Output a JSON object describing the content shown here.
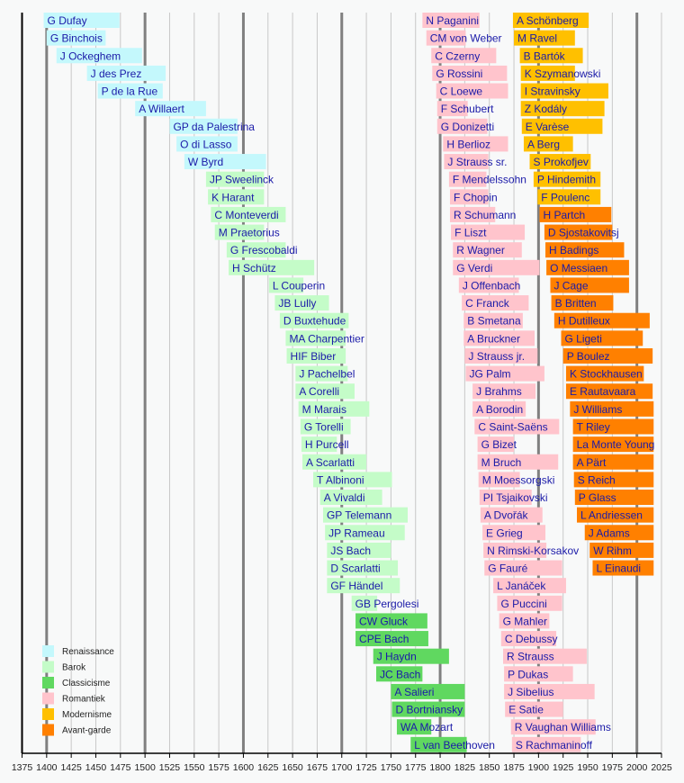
{
  "chart_data": {
    "type": "timeline",
    "title": "",
    "xlabel": "",
    "xlim": [
      1375,
      2025
    ],
    "x_ticks": [
      1375,
      1400,
      1425,
      1450,
      1475,
      1500,
      1525,
      1550,
      1575,
      1600,
      1625,
      1650,
      1675,
      1700,
      1725,
      1750,
      1775,
      1800,
      1825,
      1850,
      1875,
      1900,
      1925,
      1950,
      1975,
      2000,
      2025
    ],
    "grid": true,
    "legend_position": "bottom-left",
    "periods": [
      {
        "key": "ren",
        "label": "Renaissance",
        "color": "#c4f8fc"
      },
      {
        "key": "bar",
        "label": "Barok",
        "color": "#c4fcc8"
      },
      {
        "key": "cla",
        "label": "Classicisme",
        "color": "#60d860"
      },
      {
        "key": "rom",
        "label": "Romantiek",
        "color": "#ffc4cc"
      },
      {
        "key": "mod",
        "label": "Modernisme",
        "color": "#ffc000"
      },
      {
        "key": "ava",
        "label": "Avant-garde",
        "color": "#ff8000"
      }
    ],
    "rows": [
      [
        [
          "G Dufay",
          1397,
          1474,
          "ren"
        ],
        [
          "N Paganini",
          1782,
          1840,
          "rom"
        ],
        [
          "A Schönberg",
          1874,
          1951,
          "mod"
        ]
      ],
      [
        [
          "G Binchois",
          1400,
          1460,
          "ren"
        ],
        [
          "CM von Weber",
          1786,
          1826,
          "rom"
        ],
        [
          "M Ravel",
          1875,
          1937,
          "mod"
        ]
      ],
      [
        [
          "J Ockeghem",
          1410,
          1497,
          "ren"
        ],
        [
          "C Czerny",
          1791,
          1857,
          "rom"
        ],
        [
          "B Bartók",
          1881,
          1945,
          "mod"
        ]
      ],
      [
        [
          "J des Prez",
          1441,
          1521,
          "ren"
        ],
        [
          "G Rossini",
          1792,
          1868,
          "rom"
        ],
        [
          "K Szymanowski",
          1882,
          1937,
          "mod"
        ]
      ],
      [
        [
          "P de la Rue",
          1452,
          1518,
          "ren"
        ],
        [
          "C Loewe",
          1796,
          1869,
          "rom"
        ],
        [
          "I Stravinsky",
          1882,
          1971,
          "mod"
        ]
      ],
      [
        [
          "A Willaert",
          1490,
          1562,
          "ren"
        ],
        [
          "F Schubert",
          1797,
          1828,
          "rom"
        ],
        [
          "Z Kodály",
          1882,
          1967,
          "mod"
        ]
      ],
      [
        [
          "GP da Palestrina",
          1525,
          1594,
          "ren"
        ],
        [
          "G Donizetti",
          1797,
          1848,
          "rom"
        ],
        [
          "E Varèse",
          1883,
          1965,
          "mod"
        ]
      ],
      [
        [
          "O di Lasso",
          1532,
          1594,
          "ren"
        ],
        [
          "H Berlioz",
          1803,
          1869,
          "rom"
        ],
        [
          "A Berg",
          1885,
          1935,
          "mod"
        ]
      ],
      [
        [
          "W Byrd",
          1540,
          1623,
          "ren"
        ],
        [
          "J Strauss sr.",
          1804,
          1849,
          "rom"
        ],
        [
          "S Prokofjev",
          1891,
          1953,
          "mod"
        ]
      ],
      [
        [
          "JP Sweelinck",
          1562,
          1621,
          "bar"
        ],
        [
          "F Mendelssohn",
          1809,
          1847,
          "rom"
        ],
        [
          "P Hindemith",
          1895,
          1963,
          "mod"
        ]
      ],
      [
        [
          "K Harant",
          1564,
          1621,
          "bar"
        ],
        [
          "F Chopin",
          1810,
          1849,
          "rom"
        ],
        [
          "F Poulenc",
          1899,
          1963,
          "mod"
        ]
      ],
      [
        [
          "C Monteverdi",
          1567,
          1643,
          "bar"
        ],
        [
          "R Schumann",
          1810,
          1856,
          "rom"
        ],
        [
          "H Partch",
          1901,
          1974,
          "ava"
        ]
      ],
      [
        [
          "M Praetorius",
          1571,
          1621,
          "bar"
        ],
        [
          "F Liszt",
          1811,
          1886,
          "rom"
        ],
        [
          "D Sjostakovitsj",
          1906,
          1975,
          "ava"
        ]
      ],
      [
        [
          "G Frescobaldi",
          1583,
          1643,
          "bar"
        ],
        [
          "R Wagner",
          1813,
          1883,
          "rom"
        ],
        [
          "H Badings",
          1907,
          1987,
          "ava"
        ]
      ],
      [
        [
          "H Schütz",
          1585,
          1672,
          "bar"
        ],
        [
          "G Verdi",
          1813,
          1901,
          "rom"
        ],
        [
          "O Messiaen",
          1908,
          1992,
          "ava"
        ]
      ],
      [
        [
          "L Couperin",
          1626,
          1661,
          "bar"
        ],
        [
          "J Offenbach",
          1819,
          1880,
          "rom"
        ],
        [
          "J Cage",
          1912,
          1992,
          "ava"
        ]
      ],
      [
        [
          "JB Lully",
          1632,
          1687,
          "bar"
        ],
        [
          "C Franck",
          1822,
          1890,
          "rom"
        ],
        [
          "B Britten",
          1913,
          1976,
          "ava"
        ]
      ],
      [
        [
          "D Buxtehude",
          1637,
          1707,
          "bar"
        ],
        [
          "B Smetana",
          1824,
          1884,
          "rom"
        ],
        [
          "H Dutilleux",
          1916,
          2013,
          "ava"
        ]
      ],
      [
        [
          "MA Charpentier",
          1643,
          1704,
          "bar"
        ],
        [
          "A Bruckner",
          1824,
          1896,
          "rom"
        ],
        [
          "G Ligeti",
          1923,
          2006,
          "ava"
        ]
      ],
      [
        [
          "HIF Biber",
          1644,
          1704,
          "bar"
        ],
        [
          "J Strauss jr.",
          1825,
          1899,
          "rom"
        ],
        [
          "P Boulez",
          1925,
          2016,
          "ava"
        ]
      ],
      [
        [
          "J Pachelbel",
          1653,
          1706,
          "bar"
        ],
        [
          "JG Palm",
          1826,
          1906,
          "rom"
        ],
        [
          "K Stockhausen",
          1928,
          2007,
          "ava"
        ]
      ],
      [
        [
          "A Corelli",
          1653,
          1713,
          "bar"
        ],
        [
          "J Brahms",
          1833,
          1897,
          "rom"
        ],
        [
          "E Rautavaara",
          1928,
          2016,
          "ava"
        ]
      ],
      [
        [
          "M Marais",
          1656,
          1728,
          "bar"
        ],
        [
          "A Borodin",
          1833,
          1887,
          "rom"
        ],
        [
          "J Williams",
          1932,
          2017,
          "ava"
        ]
      ],
      [
        [
          "G Torelli",
          1658,
          1709,
          "bar"
        ],
        [
          "C Saint-Saëns",
          1835,
          1921,
          "rom"
        ],
        [
          "T Riley",
          1935,
          2017,
          "ava"
        ]
      ],
      [
        [
          "H Purcell",
          1659,
          1695,
          "bar"
        ],
        [
          "G Bizet",
          1838,
          1875,
          "rom"
        ],
        [
          "La Monte Young",
          1935,
          2017,
          "ava"
        ]
      ],
      [
        [
          "A Scarlatti",
          1660,
          1725,
          "bar"
        ],
        [
          "M Bruch",
          1838,
          1920,
          "rom"
        ],
        [
          "A Pärt",
          1935,
          2017,
          "ava"
        ]
      ],
      [
        [
          "T Albinoni",
          1671,
          1751,
          "bar"
        ],
        [
          "M Moessorgski",
          1839,
          1881,
          "rom"
        ],
        [
          "S Reich",
          1936,
          2017,
          "ava"
        ]
      ],
      [
        [
          "A Vivaldi",
          1678,
          1741,
          "bar"
        ],
        [
          "PI Tsjaikovski",
          1840,
          1893,
          "rom"
        ],
        [
          "P Glass",
          1937,
          2017,
          "ava"
        ]
      ],
      [
        [
          "GP Telemann",
          1681,
          1767,
          "bar"
        ],
        [
          "A Dvořák",
          1841,
          1904,
          "rom"
        ],
        [
          "L Andriessen",
          1939,
          2017,
          "ava"
        ]
      ],
      [
        [
          "JP Rameau",
          1683,
          1764,
          "bar"
        ],
        [
          "E Grieg",
          1843,
          1907,
          "rom"
        ],
        [
          "J Adams",
          1947,
          2017,
          "ava"
        ]
      ],
      [
        [
          "JS Bach",
          1685,
          1750,
          "bar"
        ],
        [
          "N Rimski-Korsakov",
          1844,
          1908,
          "rom"
        ],
        [
          "W Rihm",
          1952,
          2017,
          "ava"
        ]
      ],
      [
        [
          "D Scarlatti",
          1685,
          1757,
          "bar"
        ],
        [
          "G Fauré",
          1845,
          1924,
          "rom"
        ],
        [
          "L Einaudi",
          1955,
          2017,
          "ava"
        ]
      ],
      [
        [
          "GF Händel",
          1685,
          1759,
          "bar"
        ],
        [
          "L Janáček",
          1854,
          1928,
          "rom"
        ]
      ],
      [
        [
          "GB Pergolesi",
          1710,
          1736,
          "bar"
        ],
        [
          "G Puccini",
          1858,
          1924,
          "rom"
        ]
      ],
      [
        [
          "CW Gluck",
          1714,
          1787,
          "cla"
        ],
        [
          "G Mahler",
          1860,
          1911,
          "rom"
        ]
      ],
      [
        [
          "CPE Bach",
          1714,
          1788,
          "cla"
        ],
        [
          "C Debussy",
          1862,
          1918,
          "rom"
        ]
      ],
      [
        [
          "J Haydn",
          1732,
          1809,
          "cla"
        ],
        [
          "R Strauss",
          1864,
          1949,
          "rom"
        ]
      ],
      [
        [
          "JC Bach",
          1735,
          1782,
          "cla"
        ],
        [
          "P Dukas",
          1865,
          1935,
          "rom"
        ]
      ],
      [
        [
          "A Salieri",
          1750,
          1825,
          "cla"
        ],
        [
          "J Sibelius",
          1865,
          1957,
          "rom"
        ]
      ],
      [
        [
          "D Bortniansky",
          1751,
          1825,
          "cla"
        ],
        [
          "E Satie",
          1866,
          1925,
          "rom"
        ]
      ],
      [
        [
          "WA Mozart",
          1756,
          1791,
          "cla"
        ],
        [
          "R Vaughan Williams",
          1872,
          1958,
          "rom"
        ]
      ],
      [
        [
          "L van Beethoven",
          1770,
          1827,
          "cla"
        ],
        [
          "S Rachmaninoff",
          1873,
          1943,
          "rom"
        ]
      ]
    ]
  }
}
